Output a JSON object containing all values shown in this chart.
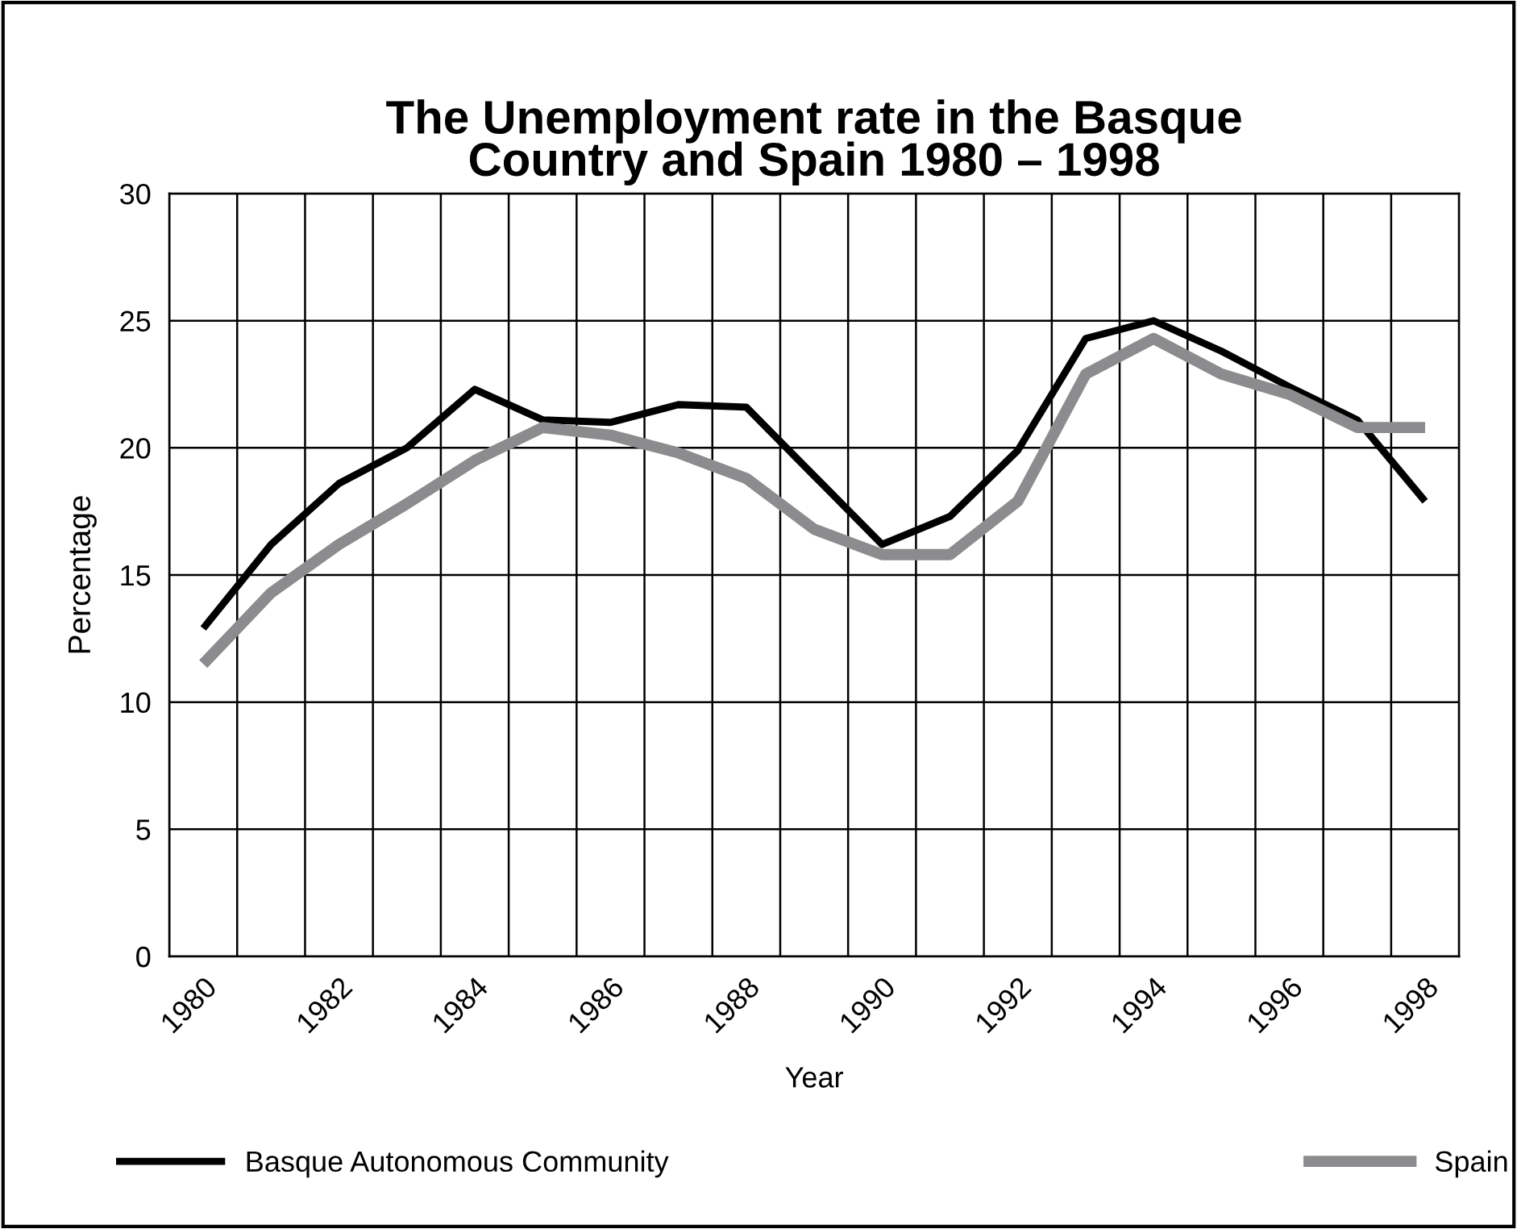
{
  "chart_data": {
    "type": "line",
    "title": "The Unemployment rate in the Basque\nCountry and Spain 1980 – 1998",
    "xlabel": "Year",
    "ylabel": "Percentage",
    "categories": [
      "1980",
      null,
      "1982",
      null,
      "1984",
      null,
      "1986",
      null,
      "1988",
      null,
      "1990",
      null,
      "1992",
      null,
      "1994",
      null,
      "1996",
      null,
      "1998"
    ],
    "series": [
      {
        "name": "Basque Autonomous Community",
        "color": "#000000",
        "values": [
          12.9,
          16.2,
          18.6,
          20.0,
          22.3,
          21.1,
          21.0,
          21.7,
          21.6,
          18.9,
          16.2,
          17.3,
          19.9,
          24.3,
          25.0,
          23.8,
          22.4,
          21.1,
          17.9
        ]
      },
      {
        "name": "Spain",
        "color": "#8c8c8e",
        "values": [
          11.5,
          14.3,
          16.2,
          17.8,
          19.5,
          20.8,
          20.5,
          19.8,
          18.8,
          16.8,
          15.8,
          15.8,
          17.9,
          22.9,
          24.3,
          22.9,
          22.1,
          20.8,
          20.8
        ]
      }
    ],
    "ylim": [
      0,
      30
    ],
    "yticks": [
      0,
      5,
      10,
      15,
      20,
      25,
      30
    ],
    "grid": true,
    "legend": "bottom",
    "line_style": "solid"
  }
}
